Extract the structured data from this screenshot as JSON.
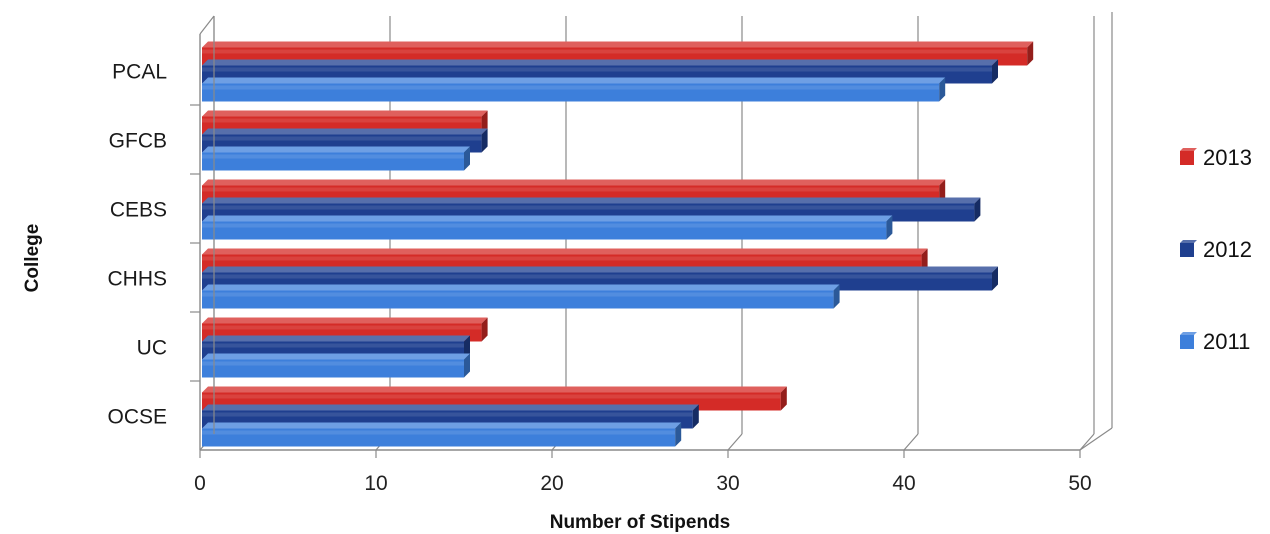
{
  "chart_data": {
    "type": "bar",
    "orientation": "horizontal",
    "style": "3d",
    "categories": [
      "PCAL",
      "GFCB",
      "CEBS",
      "CHHS",
      "UC",
      "OCSE"
    ],
    "series": [
      {
        "name": "2013",
        "color": "#d42b27",
        "values": [
          47,
          16,
          42,
          41,
          16,
          33
        ]
      },
      {
        "name": "2012",
        "color": "#1f3f8f",
        "values": [
          45,
          16,
          44,
          45,
          15,
          28
        ]
      },
      {
        "name": "2011",
        "color": "#3d7fdb",
        "values": [
          42,
          15,
          39,
          36,
          15,
          27
        ]
      }
    ],
    "xlabel": "Number of Stipends",
    "ylabel": "College",
    "xlim": [
      0,
      50
    ],
    "xticks": [
      0,
      10,
      20,
      30,
      40,
      50
    ],
    "grid": true,
    "legend_position": "right"
  }
}
